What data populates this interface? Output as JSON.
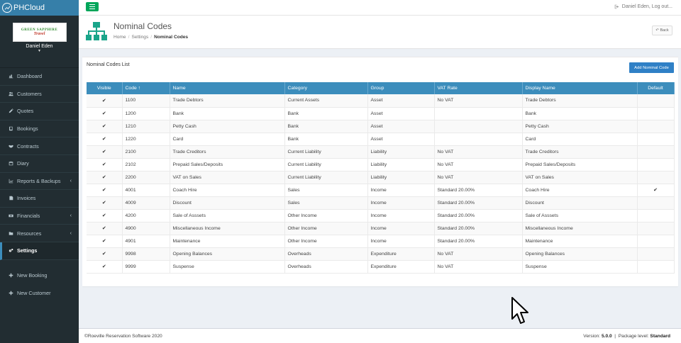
{
  "app": {
    "logo_text": "PHCloud"
  },
  "company_logo": {
    "line1": "GREEN SAPPHIRE",
    "line2": "Travel"
  },
  "user": {
    "name": "Daniel Eden",
    "logout_text": "Daniel Eden, Log out..."
  },
  "sidebar": {
    "items": [
      {
        "label": "Dashboard",
        "icon": "dashboard-icon",
        "chevron": false,
        "active": false
      },
      {
        "label": "Customers",
        "icon": "users-icon",
        "chevron": false,
        "active": false
      },
      {
        "label": "Quotes",
        "icon": "pencil-icon",
        "chevron": false,
        "active": false
      },
      {
        "label": "Bookings",
        "icon": "book-icon",
        "chevron": false,
        "active": false
      },
      {
        "label": "Contracts",
        "icon": "handshake-icon",
        "chevron": false,
        "active": false
      },
      {
        "label": "Diary",
        "icon": "calendar-icon",
        "chevron": false,
        "active": false
      },
      {
        "label": "Reports & Backups",
        "icon": "chart-icon",
        "chevron": true,
        "active": false
      },
      {
        "label": "Invoices",
        "icon": "invoice-icon",
        "chevron": false,
        "active": false
      },
      {
        "label": "Financials",
        "icon": "money-icon",
        "chevron": true,
        "active": false
      },
      {
        "label": "Resources",
        "icon": "folder-icon",
        "chevron": true,
        "active": false
      },
      {
        "label": "Settings",
        "icon": "gears-icon",
        "chevron": false,
        "active": true
      }
    ],
    "actions": [
      {
        "label": "New Booking"
      },
      {
        "label": "New Customer"
      }
    ]
  },
  "header": {
    "title": "Nominal Codes",
    "breadcrumb": [
      "Home",
      "Settings",
      "Nominal Codes"
    ],
    "back_label": "Back"
  },
  "box": {
    "title": "Nominal Codes List",
    "add_button": "Add Nominal Code"
  },
  "table": {
    "columns": [
      "Visible",
      "Code",
      "Name",
      "Category",
      "Group",
      "VAT Rate",
      "Display Name",
      "Default"
    ],
    "sort_indicator": "↑",
    "check_glyph": "✔",
    "rows": [
      {
        "visible": true,
        "code": "1100",
        "name": "Trade Debtors",
        "category": "Current Assets",
        "group": "Asset",
        "vat": "No VAT",
        "display": "Trade Debtors",
        "default": false
      },
      {
        "visible": true,
        "code": "1200",
        "name": "Bank",
        "category": "Bank",
        "group": "Asset",
        "vat": "",
        "display": "Bank",
        "default": false
      },
      {
        "visible": true,
        "code": "1210",
        "name": "Petty Cash",
        "category": "Bank",
        "group": "Asset",
        "vat": "",
        "display": "Petty Cash",
        "default": false
      },
      {
        "visible": true,
        "code": "1220",
        "name": "Card",
        "category": "Bank",
        "group": "Asset",
        "vat": "",
        "display": "Card",
        "default": false
      },
      {
        "visible": true,
        "code": "2100",
        "name": "Trade Creditors",
        "category": "Current Liability",
        "group": "Liability",
        "vat": "No VAT",
        "display": "Trade Creditors",
        "default": false
      },
      {
        "visible": true,
        "code": "2102",
        "name": "Prepaid Sales/Deposits",
        "category": "Current Liability",
        "group": "Liability",
        "vat": "No VAT",
        "display": "Prepaid Sales/Deposits",
        "default": false
      },
      {
        "visible": true,
        "code": "2200",
        "name": "VAT on Sales",
        "category": "Current Liability",
        "group": "Liability",
        "vat": "No VAT",
        "display": "VAT on Sales",
        "default": false
      },
      {
        "visible": true,
        "code": "4001",
        "name": "Coach Hire",
        "category": "Sales",
        "group": "Income",
        "vat": "Standard 20.00%",
        "display": "Coach Hire",
        "default": true
      },
      {
        "visible": true,
        "code": "4009",
        "name": "Discount",
        "category": "Sales",
        "group": "Income",
        "vat": "Standard 20.00%",
        "display": "Discount",
        "default": false
      },
      {
        "visible": true,
        "code": "4200",
        "name": "Sale of Asssets",
        "category": "Other Income",
        "group": "Income",
        "vat": "Standard 20.00%",
        "display": "Sale of Asssets",
        "default": false
      },
      {
        "visible": true,
        "code": "4900",
        "name": "Miscellaneous Income",
        "category": "Other Income",
        "group": "Income",
        "vat": "Standard 20.00%",
        "display": "Miscellaneous Income",
        "default": false
      },
      {
        "visible": true,
        "code": "4901",
        "name": "Maintenance",
        "category": "Other Income",
        "group": "Income",
        "vat": "Standard 20.00%",
        "display": "Maintenance",
        "default": false
      },
      {
        "visible": true,
        "code": "9998",
        "name": "Opening Balances",
        "category": "Overheads",
        "group": "Expenditure",
        "vat": "No VAT",
        "display": "Opening Balances",
        "default": false
      },
      {
        "visible": true,
        "code": "9999",
        "name": "Suspense",
        "category": "Overheads",
        "group": "Expenditure",
        "vat": "No VAT",
        "display": "Suspense",
        "default": false
      }
    ]
  },
  "footer": {
    "copyright": "©Roeville Reservation Software 2020",
    "version_label": "Version:",
    "version": "5.0.0",
    "package_label": "Package level:",
    "package": "Standard"
  },
  "colors": {
    "sidebar_bg": "#222d32",
    "logo_bar": "#367fa9",
    "table_header": "#3c8dbc",
    "add_button": "#2f80c6",
    "menu_toggle": "#00a65a",
    "page_icon": "#1aa58a"
  }
}
